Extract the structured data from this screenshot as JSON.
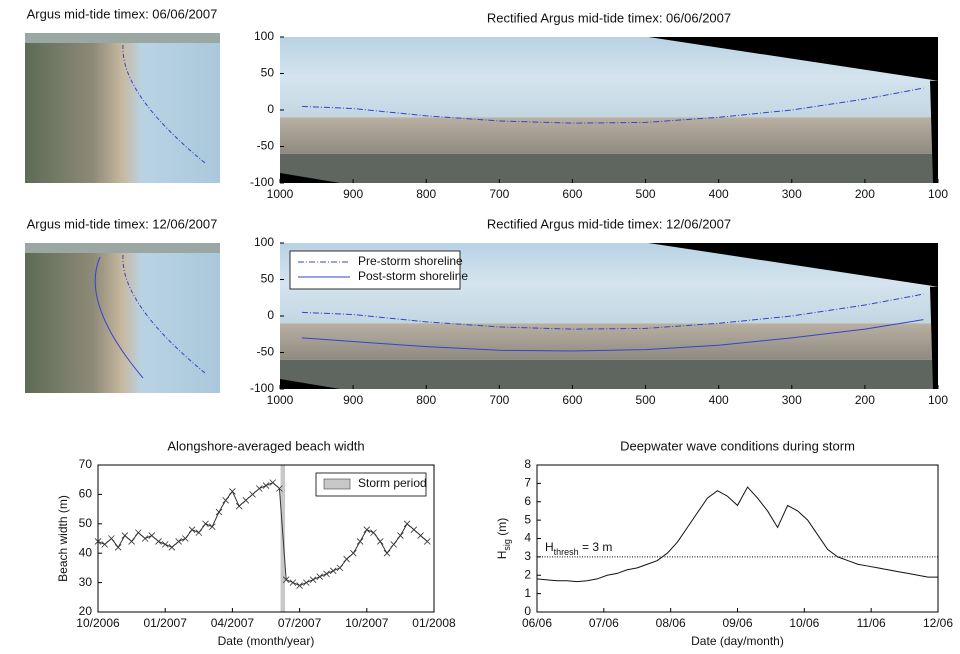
{
  "chart_data": [
    {
      "type": "photo",
      "title": "Argus mid-tide timex: 06/06/2007"
    },
    {
      "type": "image",
      "title": "Rectified Argus mid-tide timex: 06/06/2007",
      "xlim": [
        1000,
        100
      ],
      "ylim": [
        -100,
        100
      ],
      "xticks": [
        1000,
        900,
        800,
        700,
        600,
        500,
        400,
        300,
        200,
        100
      ],
      "yticks": [
        -100,
        -50,
        0,
        50,
        100
      ],
      "series": [
        {
          "color": "#3344cc",
          "style": "dashdot",
          "x": [
            970,
            900,
            800,
            700,
            600,
            500,
            400,
            300,
            200,
            120
          ],
          "values": [
            5,
            2,
            -8,
            -15,
            -18,
            -17,
            -10,
            0,
            15,
            30
          ]
        }
      ]
    },
    {
      "type": "photo",
      "title": "Argus mid-tide timex: 12/06/2007"
    },
    {
      "type": "image",
      "title": "Rectified Argus mid-tide timex: 12/06/2007",
      "xlim": [
        1000,
        100
      ],
      "ylim": [
        -100,
        100
      ],
      "xticks": [
        1000,
        900,
        800,
        700,
        600,
        500,
        400,
        300,
        200,
        100
      ],
      "yticks": [
        -100,
        -50,
        0,
        50,
        100
      ],
      "legend": "upper left",
      "series": [
        {
          "name": "Pre-storm shoreline",
          "color": "#3344cc",
          "style": "dashdot",
          "x": [
            970,
            900,
            800,
            700,
            600,
            500,
            400,
            300,
            200,
            120
          ],
          "values": [
            5,
            2,
            -8,
            -15,
            -18,
            -17,
            -10,
            0,
            15,
            30
          ]
        },
        {
          "name": "Post-storm shoreline",
          "color": "#3344cc",
          "style": "solid",
          "x": [
            970,
            900,
            800,
            700,
            600,
            500,
            400,
            300,
            200,
            120
          ],
          "values": [
            -30,
            -35,
            -42,
            -47,
            -48,
            -46,
            -40,
            -30,
            -18,
            -5
          ]
        }
      ]
    },
    {
      "type": "line",
      "title": "Alongshore-averaged beach width",
      "xlabel": "Date (month/year)",
      "ylabel": "Beach width (m)",
      "xlim": [
        0,
        15
      ],
      "ylim": [
        20,
        70
      ],
      "xticks": [
        {
          "value": 0,
          "label": "10/2006"
        },
        {
          "value": 3,
          "label": "01/2007"
        },
        {
          "value": 6,
          "label": "04/2007"
        },
        {
          "value": 9,
          "label": "07/2007"
        },
        {
          "value": 12,
          "label": "10/2007"
        },
        {
          "value": 15,
          "label": "01/2008"
        }
      ],
      "yticks": [
        20,
        30,
        40,
        50,
        60,
        70
      ],
      "legend": "upper right",
      "storm_period": {
        "label": "Storm period",
        "range": [
          8.15,
          8.35
        ]
      },
      "series": [
        {
          "color": "#333333",
          "marker": "x",
          "x": [
            0,
            0.3,
            0.6,
            0.9,
            1.2,
            1.5,
            1.8,
            2.1,
            2.4,
            2.7,
            3.0,
            3.3,
            3.6,
            3.9,
            4.2,
            4.5,
            4.8,
            5.1,
            5.4,
            5.7,
            6.0,
            6.3,
            6.6,
            6.9,
            7.2,
            7.5,
            7.8,
            8.1,
            8.4,
            8.7,
            9.0,
            9.3,
            9.6,
            9.9,
            10.2,
            10.5,
            10.8,
            11.1,
            11.4,
            11.7,
            12.0,
            12.3,
            12.6,
            12.9,
            13.2,
            13.5,
            13.8,
            14.1,
            14.4,
            14.7
          ],
          "values": [
            44,
            43,
            45,
            42,
            46,
            44,
            47,
            45,
            46,
            44,
            43,
            42,
            44,
            45,
            48,
            47,
            50,
            49,
            54,
            58,
            61,
            56,
            58,
            60,
            62,
            63,
            64,
            62,
            31,
            30,
            29,
            30,
            31,
            32,
            33,
            34,
            35,
            38,
            40,
            44,
            48,
            47,
            44,
            40,
            43,
            46,
            50,
            48,
            46,
            44
          ]
        }
      ]
    },
    {
      "type": "line",
      "title": "Deepwater wave conditions during storm",
      "xlabel": "Date (day/month)",
      "ylabel": [
        "H",
        "sig",
        " (m)"
      ],
      "xlim": [
        6,
        12
      ],
      "ylim": [
        0,
        8
      ],
      "xticks": [
        {
          "value": 6,
          "label": "06/06"
        },
        {
          "value": 7,
          "label": "07/06"
        },
        {
          "value": 8,
          "label": "08/06"
        },
        {
          "value": 9,
          "label": "09/06"
        },
        {
          "value": 10,
          "label": "10/06"
        },
        {
          "value": 11,
          "label": "11/06"
        },
        {
          "value": 12,
          "label": "12/06"
        }
      ],
      "yticks": [
        0,
        1,
        2,
        3,
        4,
        5,
        6,
        7,
        8
      ],
      "threshold": {
        "value": 3,
        "label": [
          "H",
          "thresh",
          " = 3 m"
        ]
      },
      "series": [
        {
          "color": "#111111",
          "x": [
            6.0,
            6.15,
            6.3,
            6.45,
            6.6,
            6.75,
            6.9,
            7.05,
            7.2,
            7.35,
            7.5,
            7.65,
            7.8,
            7.95,
            8.1,
            8.25,
            8.4,
            8.55,
            8.7,
            8.85,
            9.0,
            9.15,
            9.3,
            9.45,
            9.6,
            9.75,
            9.9,
            10.05,
            10.2,
            10.35,
            10.5,
            10.65,
            10.8,
            10.95,
            11.1,
            11.25,
            11.4,
            11.55,
            11.7,
            11.85,
            12.0
          ],
          "values": [
            1.8,
            1.75,
            1.7,
            1.7,
            1.65,
            1.7,
            1.8,
            2.0,
            2.1,
            2.3,
            2.4,
            2.6,
            2.8,
            3.2,
            3.8,
            4.6,
            5.4,
            6.2,
            6.6,
            6.3,
            5.8,
            6.8,
            6.2,
            5.5,
            4.6,
            5.8,
            5.5,
            5.0,
            4.2,
            3.4,
            3.0,
            2.8,
            2.6,
            2.5,
            2.4,
            2.3,
            2.2,
            2.1,
            2.0,
            1.9,
            1.9
          ]
        }
      ]
    }
  ]
}
